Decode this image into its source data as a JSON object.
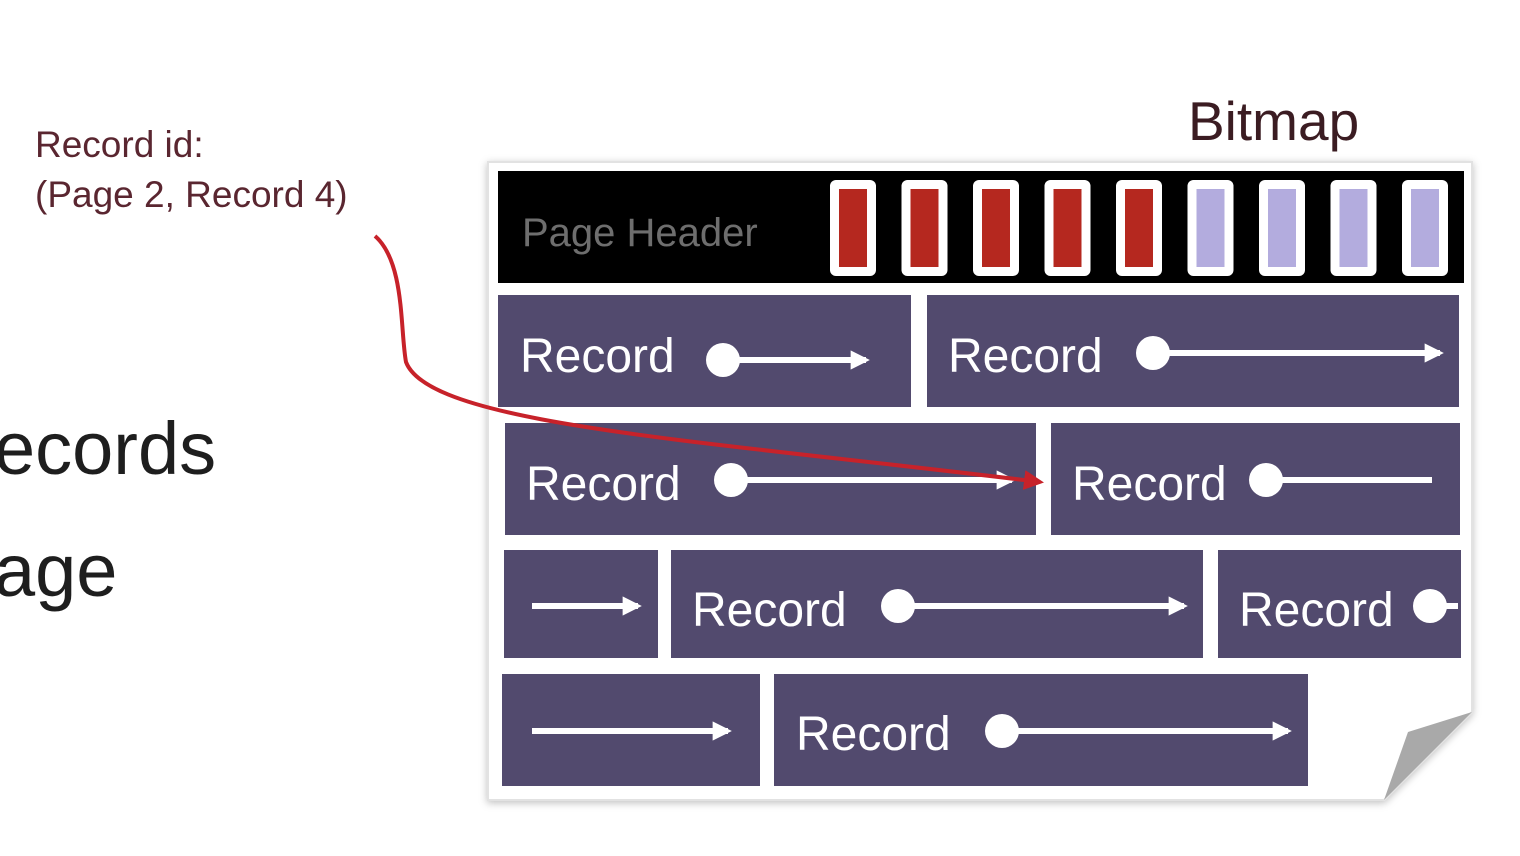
{
  "record_id": {
    "line1": "Record id:",
    "line2": "(Page 2, Record 4)"
  },
  "side_text": {
    "line1": "ecords",
    "line2": "age"
  },
  "bitmap_label": "Bitmap",
  "page_header_label": "Page Header",
  "bitmap_bits": [
    1,
    1,
    1,
    1,
    1,
    0,
    0,
    0,
    0
  ],
  "record_label": "Record",
  "colors": {
    "record_fill": "#524a6e",
    "header_fill": "#000000",
    "bit_set": "#b5281f",
    "bit_clear": "#b3acde",
    "pointer_arrow": "#c7222a",
    "text_dark": "#5a2630"
  }
}
